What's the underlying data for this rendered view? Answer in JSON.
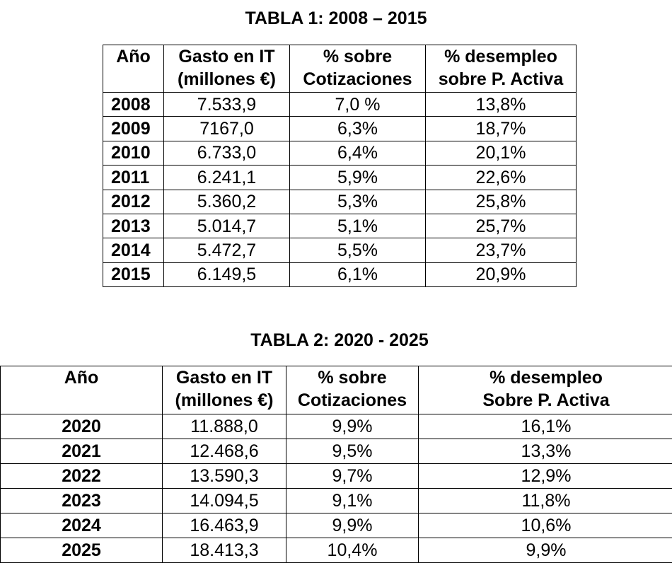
{
  "table1": {
    "title": "TABLA 1: 2008 – 2015",
    "headers": {
      "year": "Año",
      "spend_line1": "Gasto en IT",
      "spend_line2": "(millones €)",
      "cot_line1": "% sobre",
      "cot_line2": "Cotizaciones",
      "unemp_line1": "% desempleo",
      "unemp_line2": "sobre P. Activa"
    },
    "rows": [
      {
        "year": "2008",
        "spend": "7.533,9",
        "cot": "7,0 %",
        "unemp": "13,8%"
      },
      {
        "year": "2009",
        "spend": "7167,0",
        "cot": "6,3%",
        "unemp": "18,7%"
      },
      {
        "year": "2010",
        "spend": "6.733,0",
        "cot": "6,4%",
        "unemp": "20,1%"
      },
      {
        "year": "2011",
        "spend": "6.241,1",
        "cot": "5,9%",
        "unemp": "22,6%"
      },
      {
        "year": "2012",
        "spend": "5.360,2",
        "cot": "5,3%",
        "unemp": "25,8%"
      },
      {
        "year": "2013",
        "spend": "5.014,7",
        "cot": "5,1%",
        "unemp": "25,7%"
      },
      {
        "year": "2014",
        "spend": "5.472,7",
        "cot": "5,5%",
        "unemp": "23,7%"
      },
      {
        "year": "2015",
        "spend": "6.149,5",
        "cot": "6,1%",
        "unemp": "20,9%"
      }
    ]
  },
  "table2": {
    "title": "TABLA 2: 2020 - 2025",
    "headers": {
      "year": "Año",
      "spend_line1": "Gasto en IT",
      "spend_line2": "(millones €)",
      "cot_line1": "% sobre",
      "cot_line2": "Cotizaciones",
      "unemp_line1": "% desempleo",
      "unemp_line2": "Sobre P. Activa"
    },
    "rows": [
      {
        "year": "2020",
        "spend": "11.888,0",
        "cot": "9,9%",
        "unemp": "16,1%"
      },
      {
        "year": "2021",
        "spend": "12.468,6",
        "cot": "9,5%",
        "unemp": "13,3%"
      },
      {
        "year": "2022",
        "spend": "13.590,3",
        "cot": "9,7%",
        "unemp": "12,9%"
      },
      {
        "year": "2023",
        "spend": "14.094,5",
        "cot": "9,1%",
        "unemp": "11,8%"
      },
      {
        "year": "2024",
        "spend": "16.463,9",
        "cot": "9,9%",
        "unemp": "10,6%"
      },
      {
        "year": "2025",
        "spend": "18.413,3",
        "cot": "10,4%",
        "unemp": "9,9%"
      }
    ]
  }
}
